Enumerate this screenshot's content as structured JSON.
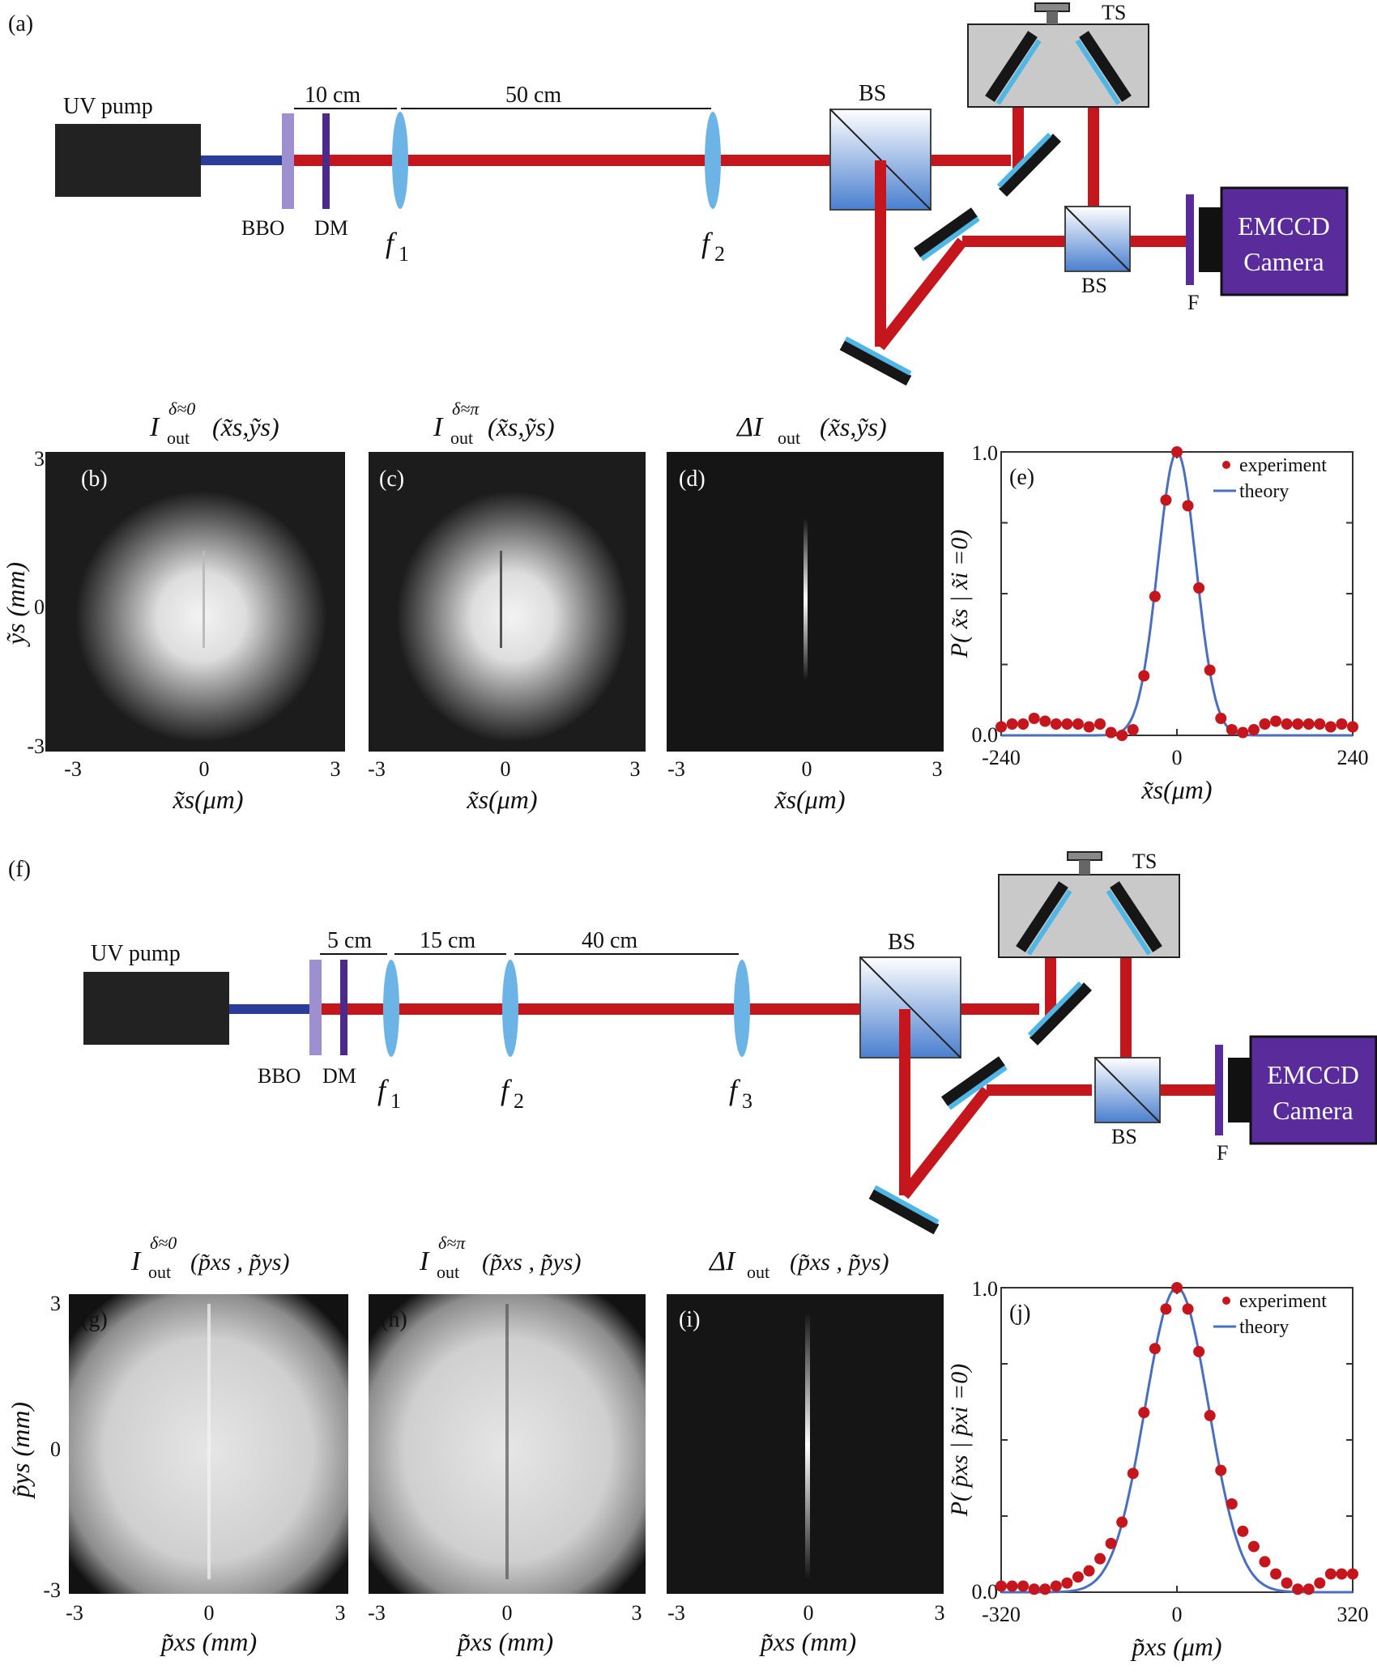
{
  "colors": {
    "beam_red": "#c4161c",
    "beam_pump": "#2b3d99",
    "lens": "#6cb4e6",
    "bbo": "#9d8fd0",
    "dm": "#4b2a8c",
    "camera": "#5a2b9a",
    "mirror_black": "#161616",
    "mirror_coat": "#4fb6e6",
    "stage_gray": "#c9c9c9",
    "data_red": "#c4161c",
    "theory_blue": "#4a6fbf"
  },
  "icons": [
    "uv-pump-box",
    "crystal-bbo",
    "dichroic-mirror",
    "lens",
    "beam-splitter-cube",
    "mirror",
    "translation-stage",
    "filter",
    "emccd-camera"
  ],
  "setup_a": {
    "panel": "(a)",
    "pump": "UV pump",
    "bbo": "BBO",
    "dm": "DM",
    "dist1": "10 cm",
    "dist2": "50 cm",
    "lens1_f": "f",
    "lens1_sub": "1",
    "lens2_f": "f",
    "lens2_sub": "2",
    "bs_main": "BS",
    "bs_small": "BS",
    "ts": "TS",
    "filter": "F",
    "camera_l1": "EMCCD",
    "camera_l2": "Camera"
  },
  "setup_f": {
    "panel": "(f)",
    "pump": "UV pump",
    "bbo": "BBO",
    "dm": "DM",
    "dist1": "5 cm",
    "dist2": "15 cm",
    "dist3": "40 cm",
    "lens1_f": "f",
    "lens1_sub": "1",
    "lens2_f": "f",
    "lens2_sub": "2",
    "lens3_f": "f",
    "lens3_sub": "3",
    "bs_main": "BS",
    "bs_small": "BS",
    "ts": "TS",
    "filter": "F",
    "camera_l1": "EMCCD",
    "camera_l2": "Camera"
  },
  "row1": {
    "titles": {
      "b": {
        "main": "I",
        "sub": "out",
        "sup": "δ≈0",
        "args": "(x̃s,ỹs)"
      },
      "c": {
        "main": "I",
        "sub": "out",
        "sup": "δ≈π",
        "args": "(x̃s,ỹs)"
      },
      "d": {
        "main": "ΔI",
        "sub": "out",
        "sup": "",
        "args": "(x̃s,ỹs)"
      }
    },
    "panels": [
      "(b)",
      "(c)",
      "(d)"
    ],
    "ylabel": "ỹs (mm)",
    "xlabel": "x̃s(μm)",
    "yticks": [
      "3",
      "0",
      "-3"
    ],
    "xticks": [
      "-3",
      "0",
      "3"
    ]
  },
  "row2": {
    "titles": {
      "g": {
        "main": "I",
        "sub": "out",
        "sup": "δ≈0",
        "args": "(p̃xs , p̃ys)"
      },
      "h": {
        "main": "I",
        "sub": "out",
        "sup": "δ≈π",
        "args": "(p̃xs , p̃ys)"
      },
      "i": {
        "main": "ΔI",
        "sub": "out",
        "sup": "",
        "args": "(p̃xs , p̃ys)"
      }
    },
    "panels": [
      "(g)",
      "(h)",
      "(i)"
    ],
    "ylabel": "p̃ys (mm)",
    "xlabel": "p̃xs (mm)",
    "yticks": [
      "3",
      "0",
      "-3"
    ],
    "xticks": [
      "-3",
      "0",
      "3"
    ]
  },
  "chart_data": [
    {
      "type": "scatter",
      "panel": "(e)",
      "xlabel": "x̃s(μm)",
      "ylabel": "P( x̃s | x̃i =0)",
      "xlim": [
        -240,
        240
      ],
      "ylim": [
        0,
        1
      ],
      "xticks": [
        "-240",
        "0",
        "240"
      ],
      "yticks": [
        "0.0",
        "1.0"
      ],
      "grid": false,
      "legend_position": "top-right",
      "series": [
        {
          "name": "experiment",
          "kind": "points",
          "color": "#c4161c",
          "x": [
            -240,
            -225,
            -210,
            -195,
            -180,
            -165,
            -150,
            -135,
            -120,
            -105,
            -90,
            -75,
            -60,
            -45,
            -30,
            -15,
            0,
            15,
            30,
            45,
            60,
            75,
            90,
            105,
            120,
            135,
            150,
            165,
            180,
            195,
            210,
            225,
            240
          ],
          "y": [
            0.03,
            0.04,
            0.04,
            0.06,
            0.05,
            0.04,
            0.04,
            0.04,
            0.03,
            0.04,
            0.01,
            0.0,
            0.02,
            0.21,
            0.49,
            0.83,
            1.0,
            0.81,
            0.52,
            0.23,
            0.06,
            0.02,
            0.01,
            0.02,
            0.04,
            0.05,
            0.04,
            0.04,
            0.04,
            0.04,
            0.03,
            0.04,
            0.03
          ]
        },
        {
          "name": "theory",
          "kind": "line",
          "color": "#4a6fbf",
          "gaussian_sigma": 26,
          "baseline": 0.0
        }
      ]
    },
    {
      "type": "scatter",
      "panel": "(j)",
      "xlabel": "p̃xs (μm)",
      "ylabel": "P( p̃xs | p̃xi =0)",
      "xlim": [
        -320,
        320
      ],
      "ylim": [
        0,
        1
      ],
      "xticks": [
        "-320",
        "0",
        "320"
      ],
      "yticks": [
        "0.0",
        "1.0"
      ],
      "grid": false,
      "legend_position": "top-right",
      "series": [
        {
          "name": "experiment",
          "kind": "points",
          "color": "#c4161c",
          "x": [
            -320,
            -300,
            -280,
            -260,
            -240,
            -220,
            -200,
            -180,
            -160,
            -140,
            -120,
            -100,
            -80,
            -60,
            -40,
            -20,
            0,
            20,
            40,
            60,
            80,
            100,
            120,
            140,
            160,
            180,
            200,
            220,
            240,
            260,
            280,
            300,
            320
          ],
          "y": [
            0.02,
            0.02,
            0.02,
            0.01,
            0.01,
            0.02,
            0.03,
            0.05,
            0.07,
            0.11,
            0.16,
            0.23,
            0.39,
            0.59,
            0.8,
            0.93,
            1.0,
            0.93,
            0.79,
            0.58,
            0.4,
            0.29,
            0.2,
            0.15,
            0.1,
            0.06,
            0.03,
            0.01,
            0.01,
            0.03,
            0.06,
            0.06,
            0.06
          ]
        },
        {
          "name": "theory",
          "kind": "line",
          "color": "#4a6fbf",
          "gaussian_sigma": 58,
          "baseline": 0.0
        }
      ]
    }
  ]
}
